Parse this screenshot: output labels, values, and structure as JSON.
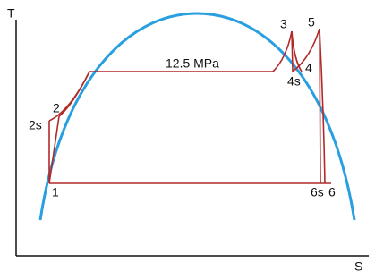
{
  "axes": {
    "y_label": "T",
    "x_label": "S"
  },
  "pressure_label": "12.5 MPa",
  "points": {
    "p1": "1",
    "p2": "2",
    "p2s": "2s",
    "p3": "3",
    "p4": "4",
    "p4s": "4s",
    "p5": "5",
    "p6": "6",
    "p6s": "6s"
  }
}
